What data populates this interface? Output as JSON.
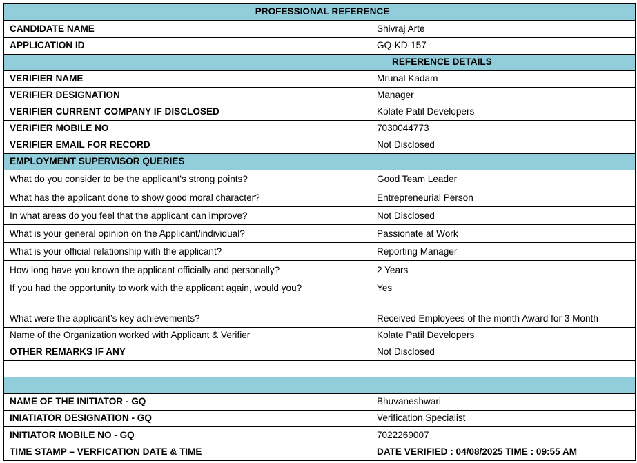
{
  "header_color": "#92CDDC",
  "title": "PROFESSIONAL REFERENCE",
  "rows": [
    {
      "label": "CANDIDATE  NAME",
      "value": "Shivraj Arte",
      "bold": true,
      "h": 25
    },
    {
      "label": "APPLICATION ID",
      "value": "GQ-KD-157",
      "bold": true,
      "h": 24
    },
    {
      "label": "",
      "value": "REFERENCE DETAILS",
      "section": true,
      "h": 24
    },
    {
      "label": "VERIFIER NAME",
      "value": "Mrunal Kadam",
      "bold": true,
      "h": 24
    },
    {
      "label": "VERIFIER DESIGNATION",
      "value": "Manager",
      "bold": true,
      "h": 24
    },
    {
      "label": "VERIFIER CURRENT COMPANY IF DISCLOSED",
      "value": "Kolate Patil Developers",
      "bold": true,
      "h": 24
    },
    {
      "label": "VERIFIER MOBILE NO",
      "value": "7030044773",
      "bold": true,
      "h": 24
    },
    {
      "label": "VERIFIER EMAIL FOR RECORD",
      "value": "Not Disclosed",
      "bold": true,
      "h": 24
    },
    {
      "label": "EMPLOYMENT SUPERVISOR QUERIES",
      "value": "",
      "section": true,
      "leftLabel": true,
      "h": 24
    },
    {
      "label": "What do you consider to be the applicant's strong points?",
      "value": "Good Team Leader",
      "h": 26
    },
    {
      "label": "What has the applicant done to show good moral character?",
      "value": "Entrepreneurial Person",
      "h": 27
    },
    {
      "label": "In what areas do you feel that the applicant can improve?",
      "value": "Not Disclosed",
      "h": 26
    },
    {
      "label": "What is your general opinion on the Applicant/individual?",
      "value": "Passionate at Work",
      "h": 26
    },
    {
      "label": "What is your official relationship with the applicant?",
      "value": "Reporting Manager",
      "h": 26
    },
    {
      "label": "How long have you known the applicant officially and personally?",
      "value": "2 Years",
      "h": 27
    },
    {
      "label": "If you had the opportunity to work with the applicant again, would you?",
      "value": "Yes",
      "h": 26
    },
    {
      "label": "What were the applicant’s key achievements?",
      "value": "Received Employees of the month Award for 3 Month",
      "h": 44
    },
    {
      "label": "Name of the Organization worked with Applicant & Verifier",
      "value": "Kolate Patil Developers",
      "h": 24
    },
    {
      "label": "OTHER REMARKS IF ANY",
      "value": "Not Disclosed",
      "bold": true,
      "h": 24
    },
    {
      "label": "",
      "value": "",
      "empty": true,
      "h": 24
    },
    {
      "label": "",
      "value": "",
      "section": true,
      "h": 24
    },
    {
      "label": "NAME OF THE INITIATOR - GQ",
      "value": "Bhuvaneshwari",
      "bold": true,
      "h": 24
    },
    {
      "label": "INIATIATOR DESIGNATION - GQ",
      "value": "Verification Specialist",
      "bold": true,
      "h": 24
    },
    {
      "label": "INITIATOR MOBILE NO - GQ",
      "value": "7022269007",
      "bold": true,
      "h": 25
    },
    {
      "label": "TIME STAMP – VERFICATION DATE & TIME",
      "value": "DATE  VERIFIED  : 04/08/2025  TIME : 09:55 AM",
      "bold": true,
      "boldValue": true,
      "h": 24
    }
  ]
}
